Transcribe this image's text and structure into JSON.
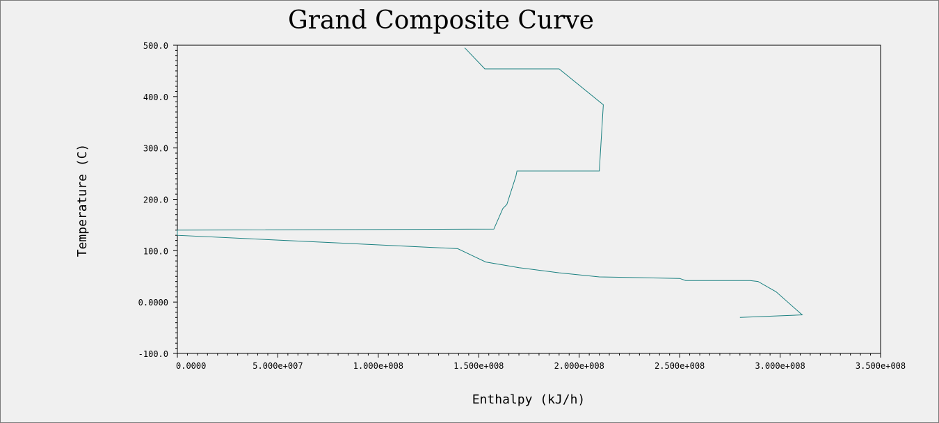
{
  "chart_data": {
    "type": "line",
    "title": "Grand Composite Curve",
    "xlabel": "Enthalpy (kJ/h)",
    "ylabel": "Temperature (C)",
    "xlim": [
      0,
      350000000
    ],
    "ylim": [
      -100,
      500
    ],
    "x_ticks": [
      {
        "value": 0,
        "label": "0.0000"
      },
      {
        "value": 50000000,
        "label": "5.000e+007"
      },
      {
        "value": 100000000,
        "label": "1.000e+008"
      },
      {
        "value": 150000000,
        "label": "1.500e+008"
      },
      {
        "value": 200000000,
        "label": "2.000e+008"
      },
      {
        "value": 250000000,
        "label": "2.500e+008"
      },
      {
        "value": 300000000,
        "label": "3.000e+008"
      },
      {
        "value": 350000000,
        "label": "3.500e+008"
      }
    ],
    "y_ticks": [
      {
        "value": 500,
        "label": "500.0"
      },
      {
        "value": 400,
        "label": "400.0"
      },
      {
        "value": 300,
        "label": "300.0"
      },
      {
        "value": 200,
        "label": "200.0"
      },
      {
        "value": 100,
        "label": "100.0"
      },
      {
        "value": 0,
        "label": "0.0000"
      },
      {
        "value": -100,
        "label": "-100.0"
      }
    ],
    "grid": false,
    "legend": "none",
    "line_color": "#1a8080",
    "series": [
      {
        "x": [
          143000000,
          153000000,
          190000000,
          212000000,
          210000000,
          169000000,
          168500000,
          164000000,
          162000000,
          157500000,
          0,
          0,
          139500000,
          147000000,
          153500000,
          170000000,
          190000000,
          210000000,
          250000000,
          253000000,
          285000000,
          289000000,
          298000000,
          311000000,
          280000000
        ],
        "y": [
          495,
          454,
          454,
          384,
          255,
          255,
          245,
          190,
          182,
          142,
          140,
          130,
          104,
          90,
          78,
          67,
          57,
          49,
          46,
          42,
          42,
          40,
          20,
          -25,
          -30
        ]
      }
    ]
  }
}
